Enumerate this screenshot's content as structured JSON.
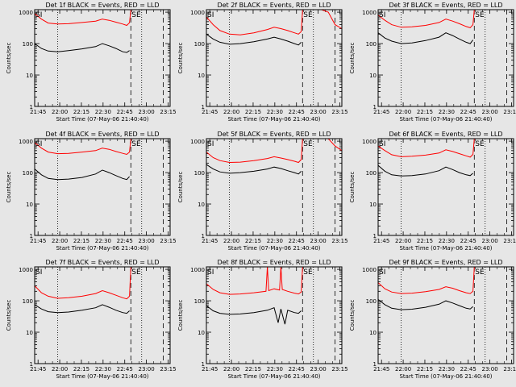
{
  "figure": {
    "background": "#e6e6e6",
    "axis_color": "#000000",
    "events_color": "#000000",
    "lld_color": "#ff0000"
  },
  "chart_data": [
    {
      "type": "line",
      "title": "Det 1f BLACK = Events, RED = LLD",
      "xlabel": "Start Time (07-May-06 21:40:40)",
      "ylabel": "Counts/sec",
      "xlim": [
        0,
        100
      ],
      "ylim": [
        1,
        1200
      ],
      "y_scale": "log",
      "x_tick_labels": [
        "21:45",
        "22:00",
        "22:15",
        "22:30",
        "22:45",
        "23:00",
        "23:15"
      ],
      "y_tick_labels": [
        "1",
        "10",
        "100",
        "1000"
      ],
      "annotations": [
        "SI",
        "SE"
      ],
      "markers": [
        {
          "x": 17,
          "style": "dotted"
        },
        {
          "x": 71,
          "style": "dashed"
        },
        {
          "x": 79,
          "style": "dotted"
        },
        {
          "x": 95,
          "style": "dashed"
        }
      ],
      "series": [
        {
          "name": "Events",
          "color": "#000000",
          "x": [
            0,
            5,
            10,
            17,
            25,
            35,
            45,
            50,
            55,
            60,
            65,
            68,
            70
          ],
          "y": [
            100,
            70,
            58,
            55,
            60,
            68,
            80,
            100,
            85,
            70,
            55,
            52,
            60
          ]
        },
        {
          "name": "LLD",
          "color": "#ff0000",
          "x": [
            0,
            5,
            10,
            17,
            25,
            35,
            45,
            50,
            55,
            60,
            65,
            68,
            70,
            71,
            72
          ],
          "y": [
            900,
            600,
            450,
            420,
            430,
            470,
            520,
            600,
            550,
            480,
            420,
            380,
            460,
            1200,
            1200
          ]
        }
      ]
    },
    {
      "type": "line",
      "title": "Det 2f BLACK = Events, RED = LLD",
      "xlabel": "Start Time (07-May-06 21:40:40)",
      "ylabel": "Counts/sec",
      "xlim": [
        0,
        100
      ],
      "ylim": [
        1,
        1200
      ],
      "y_scale": "log",
      "x_tick_labels": [
        "21:45",
        "22:00",
        "22:15",
        "22:30",
        "22:45",
        "23:00",
        "23:15"
      ],
      "y_tick_labels": [
        "1",
        "10",
        "100",
        "1000"
      ],
      "annotations": [
        "SI",
        "SE"
      ],
      "markers": [
        {
          "x": 17,
          "style": "dotted"
        },
        {
          "x": 71,
          "style": "dashed"
        },
        {
          "x": 79,
          "style": "dotted"
        },
        {
          "x": 95,
          "style": "dashed"
        }
      ],
      "series": [
        {
          "name": "Events",
          "color": "#000000",
          "x": [
            0,
            5,
            10,
            17,
            25,
            35,
            45,
            50,
            55,
            60,
            65,
            68,
            70
          ],
          "y": [
            200,
            140,
            110,
            95,
            100,
            115,
            140,
            160,
            140,
            120,
            100,
            90,
            110
          ]
        },
        {
          "name": "LLD",
          "color": "#ff0000",
          "x": [
            0,
            5,
            10,
            17,
            25,
            35,
            45,
            50,
            55,
            60,
            65,
            68,
            70,
            71,
            73,
            80,
            85,
            90,
            95,
            100
          ],
          "y": [
            700,
            400,
            260,
            200,
            190,
            220,
            280,
            330,
            300,
            260,
            220,
            200,
            240,
            1200,
            1200,
            1200,
            1200,
            1000,
            400,
            300
          ]
        }
      ]
    },
    {
      "type": "line",
      "title": "Det 3f BLACK = Events, RED = LLD",
      "xlabel": "Start Time (07-May-06 21:40:40)",
      "ylabel": "Counts/sec",
      "xlim": [
        0,
        100
      ],
      "ylim": [
        1,
        1200
      ],
      "y_scale": "log",
      "x_tick_labels": [
        "21:45",
        "22:00",
        "22:15",
        "22:30",
        "22:45",
        "23:00",
        "23:15"
      ],
      "y_tick_labels": [
        "1",
        "10",
        "100",
        "1000"
      ],
      "annotations": [
        "SI",
        "SE"
      ],
      "markers": [
        {
          "x": 17,
          "style": "dotted"
        },
        {
          "x": 71,
          "style": "dashed"
        },
        {
          "x": 79,
          "style": "dotted"
        },
        {
          "x": 95,
          "style": "dashed"
        }
      ],
      "series": [
        {
          "name": "Events",
          "color": "#000000",
          "x": [
            0,
            5,
            10,
            17,
            25,
            35,
            45,
            50,
            55,
            60,
            65,
            68,
            70
          ],
          "y": [
            220,
            150,
            120,
            100,
            105,
            125,
            160,
            220,
            180,
            140,
            110,
            100,
            130
          ]
        },
        {
          "name": "LLD",
          "color": "#ff0000",
          "x": [
            0,
            5,
            10,
            17,
            25,
            35,
            45,
            50,
            55,
            60,
            65,
            68,
            70,
            71,
            72
          ],
          "y": [
            800,
            550,
            400,
            330,
            340,
            380,
            470,
            600,
            520,
            430,
            350,
            320,
            400,
            1200,
            1200
          ]
        }
      ]
    },
    {
      "type": "line",
      "title": "Det 4f BLACK = Events, RED = LLD",
      "xlabel": "Start Time (07-May-06 21:40:40)",
      "ylabel": "Counts/sec",
      "xlim": [
        0,
        100
      ],
      "ylim": [
        1,
        1200
      ],
      "y_scale": "log",
      "x_tick_labels": [
        "21:45",
        "22:00",
        "22:15",
        "22:30",
        "22:45",
        "23:00",
        "23:15"
      ],
      "y_tick_labels": [
        "1",
        "10",
        "100",
        "1000"
      ],
      "annotations": [
        "SI",
        "SE"
      ],
      "markers": [
        {
          "x": 17,
          "style": "dotted"
        },
        {
          "x": 71,
          "style": "dashed"
        },
        {
          "x": 79,
          "style": "dotted"
        },
        {
          "x": 95,
          "style": "dashed"
        }
      ],
      "series": [
        {
          "name": "Events",
          "color": "#000000",
          "x": [
            0,
            5,
            10,
            17,
            25,
            35,
            45,
            50,
            55,
            60,
            65,
            68,
            70
          ],
          "y": [
            130,
            85,
            65,
            60,
            62,
            70,
            90,
            120,
            100,
            80,
            65,
            60,
            75
          ]
        },
        {
          "name": "LLD",
          "color": "#ff0000",
          "x": [
            0,
            5,
            10,
            17,
            25,
            35,
            45,
            50,
            55,
            60,
            65,
            68,
            70,
            71,
            72
          ],
          "y": [
            900,
            600,
            450,
            400,
            410,
            450,
            500,
            600,
            550,
            470,
            410,
            380,
            450,
            1200,
            1200
          ]
        }
      ]
    },
    {
      "type": "line",
      "title": "Det 5f BLACK = Events, RED = LLD",
      "xlabel": "Start Time (07-May-06 21:40:40)",
      "ylabel": "Counts/sec",
      "xlim": [
        0,
        100
      ],
      "ylim": [
        1,
        1200
      ],
      "y_scale": "log",
      "x_tick_labels": [
        "21:45",
        "22:00",
        "22:15",
        "22:30",
        "22:45",
        "23:00",
        "23:15"
      ],
      "y_tick_labels": [
        "1",
        "10",
        "100",
        "1000"
      ],
      "annotations": [
        "SI",
        "SE"
      ],
      "markers": [
        {
          "x": 17,
          "style": "dotted"
        },
        {
          "x": 71,
          "style": "dashed"
        },
        {
          "x": 79,
          "style": "dotted"
        },
        {
          "x": 95,
          "style": "dashed"
        }
      ],
      "series": [
        {
          "name": "Events",
          "color": "#000000",
          "x": [
            0,
            5,
            10,
            17,
            25,
            35,
            45,
            50,
            55,
            60,
            65,
            68,
            70
          ],
          "y": [
            180,
            130,
            105,
            95,
            100,
            110,
            130,
            150,
            135,
            115,
            100,
            90,
            110
          ]
        },
        {
          "name": "LLD",
          "color": "#ff0000",
          "x": [
            0,
            5,
            10,
            17,
            25,
            35,
            45,
            50,
            55,
            60,
            65,
            68,
            70,
            71,
            73,
            80,
            85,
            90,
            95,
            100
          ],
          "y": [
            450,
            300,
            240,
            210,
            215,
            240,
            280,
            320,
            290,
            260,
            230,
            210,
            260,
            1200,
            1200,
            1200,
            1200,
            1200,
            700,
            500
          ]
        }
      ]
    },
    {
      "type": "line",
      "title": "Det 6f BLACK = Events, RED = LLD",
      "xlabel": "Start Time (07-May-06 21:40:40)",
      "ylabel": "Counts/sec",
      "xlim": [
        0,
        100
      ],
      "ylim": [
        1,
        1200
      ],
      "y_scale": "log",
      "x_tick_labels": [
        "21:45",
        "22:00",
        "22:15",
        "22:30",
        "22:45",
        "23:00",
        "23:15"
      ],
      "y_tick_labels": [
        "1",
        "10",
        "100",
        "1000"
      ],
      "annotations": [
        "SI",
        "SE"
      ],
      "markers": [
        {
          "x": 17,
          "style": "dotted"
        },
        {
          "x": 71,
          "style": "dashed"
        },
        {
          "x": 79,
          "style": "dotted"
        },
        {
          "x": 95,
          "style": "dashed"
        }
      ],
      "series": [
        {
          "name": "Events",
          "color": "#000000",
          "x": [
            0,
            5,
            10,
            17,
            25,
            35,
            45,
            50,
            55,
            60,
            65,
            68,
            70
          ],
          "y": [
            170,
            110,
            85,
            78,
            80,
            90,
            115,
            150,
            125,
            100,
            85,
            80,
            95
          ]
        },
        {
          "name": "LLD",
          "color": "#ff0000",
          "x": [
            0,
            5,
            10,
            17,
            25,
            35,
            45,
            50,
            55,
            60,
            65,
            68,
            70,
            71,
            72
          ],
          "y": [
            700,
            500,
            370,
            320,
            330,
            360,
            420,
            530,
            470,
            400,
            340,
            310,
            380,
            1200,
            1200
          ]
        }
      ]
    },
    {
      "type": "line",
      "title": "Det 7f BLACK = Events, RED = LLD",
      "xlabel": "Start Time (07-May-06 21:40:40)",
      "ylabel": "Counts/sec",
      "xlim": [
        0,
        100
      ],
      "ylim": [
        1,
        1200
      ],
      "y_scale": "log",
      "x_tick_labels": [
        "21:45",
        "22:00",
        "22:15",
        "22:30",
        "22:45",
        "23:00",
        "23:15"
      ],
      "y_tick_labels": [
        "1",
        "10",
        "100",
        "1000"
      ],
      "annotations": [
        "SI",
        "SE"
      ],
      "markers": [
        {
          "x": 17,
          "style": "dotted"
        },
        {
          "x": 71,
          "style": "dashed"
        },
        {
          "x": 79,
          "style": "dotted"
        },
        {
          "x": 95,
          "style": "dashed"
        }
      ],
      "series": [
        {
          "name": "Events",
          "color": "#000000",
          "x": [
            0,
            5,
            10,
            17,
            25,
            35,
            45,
            50,
            55,
            60,
            65,
            68,
            70
          ],
          "y": [
            75,
            55,
            45,
            42,
            44,
            50,
            60,
            75,
            62,
            50,
            42,
            40,
            48
          ]
        },
        {
          "name": "LLD",
          "color": "#ff0000",
          "x": [
            0,
            5,
            10,
            17,
            25,
            35,
            45,
            50,
            55,
            60,
            65,
            68,
            70,
            71,
            72
          ],
          "y": [
            300,
            180,
            140,
            120,
            125,
            140,
            170,
            210,
            180,
            150,
            125,
            115,
            140,
            1200,
            1200
          ]
        }
      ]
    },
    {
      "type": "line",
      "title": "Det 8f BLACK = Events, RED = LLD",
      "xlabel": "Start Time (07-May-06 21:40:40)",
      "ylabel": "Counts/sec",
      "xlim": [
        0,
        100
      ],
      "ylim": [
        1,
        1200
      ],
      "y_scale": "log",
      "x_tick_labels": [
        "21:45",
        "22:00",
        "22:15",
        "22:30",
        "22:45",
        "23:00",
        "23:15"
      ],
      "y_tick_labels": [
        "1",
        "10",
        "100",
        "1000"
      ],
      "annotations": [
        "SI",
        "SE"
      ],
      "markers": [
        {
          "x": 17,
          "style": "dotted"
        },
        {
          "x": 71,
          "style": "dashed"
        },
        {
          "x": 79,
          "style": "dotted"
        },
        {
          "x": 95,
          "style": "dashed"
        }
      ],
      "series": [
        {
          "name": "Events",
          "color": "#000000",
          "x": [
            0,
            5,
            10,
            17,
            25,
            35,
            45,
            50,
            53,
            55,
            58,
            60,
            65,
            68,
            70
          ],
          "y": [
            70,
            48,
            40,
            37,
            38,
            42,
            50,
            60,
            20,
            55,
            18,
            50,
            42,
            40,
            48
          ]
        },
        {
          "name": "LLD",
          "color": "#ff0000",
          "x": [
            0,
            5,
            10,
            17,
            25,
            35,
            44,
            45,
            46,
            50,
            54,
            55,
            56,
            60,
            65,
            68,
            70,
            71,
            72
          ],
          "y": [
            350,
            230,
            180,
            160,
            165,
            180,
            200,
            1200,
            210,
            240,
            220,
            1200,
            230,
            200,
            175,
            165,
            190,
            1200,
            1200
          ]
        }
      ]
    },
    {
      "type": "line",
      "title": "Det 9f BLACK = Events, RED = LLD",
      "xlabel": "Start Time (07-May-06 21:40:40)",
      "ylabel": "Counts/sec",
      "xlim": [
        0,
        100
      ],
      "ylim": [
        1,
        1200
      ],
      "y_scale": "log",
      "x_tick_labels": [
        "21:45",
        "22:00",
        "22:15",
        "22:30",
        "22:45",
        "23:00",
        "23:15"
      ],
      "y_tick_labels": [
        "1",
        "10",
        "100",
        "1000"
      ],
      "annotations": [
        "SI",
        "SE"
      ],
      "markers": [
        {
          "x": 17,
          "style": "dotted"
        },
        {
          "x": 71,
          "style": "dashed"
        },
        {
          "x": 79,
          "style": "dotted"
        },
        {
          "x": 95,
          "style": "dashed"
        }
      ],
      "series": [
        {
          "name": "Events",
          "color": "#000000",
          "x": [
            0,
            5,
            10,
            17,
            25,
            35,
            45,
            50,
            55,
            60,
            65,
            68,
            70
          ],
          "y": [
            110,
            75,
            58,
            52,
            54,
            62,
            78,
            100,
            85,
            70,
            58,
            55,
            65
          ]
        },
        {
          "name": "LLD",
          "color": "#ff0000",
          "x": [
            0,
            5,
            10,
            17,
            25,
            35,
            45,
            50,
            55,
            60,
            65,
            68,
            70,
            71,
            72
          ],
          "y": [
            380,
            240,
            190,
            170,
            175,
            195,
            230,
            280,
            250,
            210,
            180,
            170,
            200,
            1200,
            1200
          ]
        }
      ]
    }
  ]
}
